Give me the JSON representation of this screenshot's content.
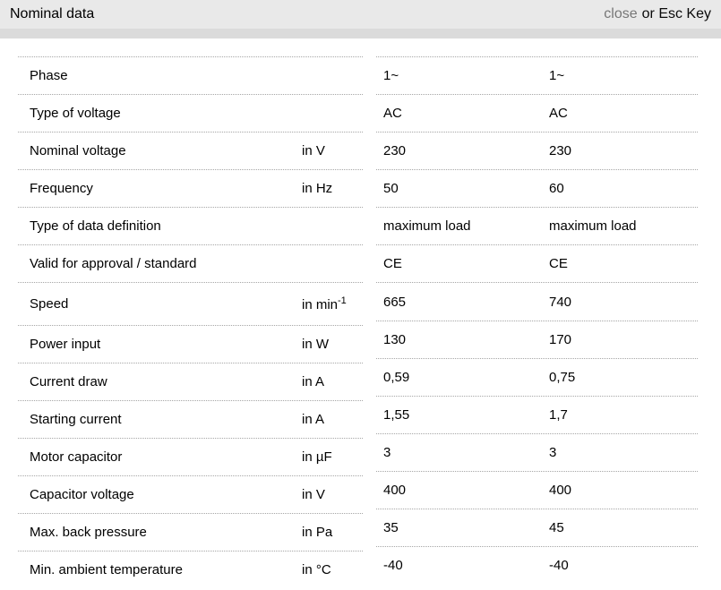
{
  "header": {
    "title": "Nominal data",
    "close_label": "close",
    "esc_hint": "or Esc Key"
  },
  "colors": {
    "header_bg": "#e9e9e9",
    "subbar_bg": "#dbdbdb",
    "close_color": "#777777",
    "divider": "#a6a6a6",
    "text": "#000000"
  },
  "table": {
    "rows": [
      {
        "label": "Phase",
        "unit": "",
        "unit_sup": "",
        "values": [
          "1~",
          "1~"
        ]
      },
      {
        "label": "Type of voltage",
        "unit": "",
        "unit_sup": "",
        "values": [
          "AC",
          "AC"
        ]
      },
      {
        "label": "Nominal voltage",
        "unit": "in V",
        "unit_sup": "",
        "values": [
          "230",
          "230"
        ]
      },
      {
        "label": "Frequency",
        "unit": "in Hz",
        "unit_sup": "",
        "values": [
          "50",
          "60"
        ]
      },
      {
        "label": "Type of data definition",
        "unit": "",
        "unit_sup": "",
        "values": [
          "maximum load",
          "maximum load"
        ]
      },
      {
        "label": "Valid for approval / standard",
        "unit": "",
        "unit_sup": "",
        "values": [
          "CE",
          "CE"
        ]
      },
      {
        "label": "Speed",
        "unit": "in min",
        "unit_sup": "-1",
        "values": [
          "665",
          "740"
        ]
      },
      {
        "label": "Power input",
        "unit": "in W",
        "unit_sup": "",
        "values": [
          "130",
          "170"
        ]
      },
      {
        "label": "Current draw",
        "unit": "in A",
        "unit_sup": "",
        "values": [
          "0,59",
          "0,75"
        ]
      },
      {
        "label": "Starting current",
        "unit": "in A",
        "unit_sup": "",
        "values": [
          "1,55",
          "1,7"
        ]
      },
      {
        "label": "Motor capacitor",
        "unit": "in µF",
        "unit_sup": "",
        "values": [
          "3",
          "3"
        ]
      },
      {
        "label": "Capacitor voltage",
        "unit": "in V",
        "unit_sup": "",
        "values": [
          "400",
          "400"
        ]
      },
      {
        "label": "Max. back pressure",
        "unit": "in Pa",
        "unit_sup": "",
        "values": [
          "35",
          "45"
        ]
      },
      {
        "label": "Min. ambient temperature",
        "unit": "in °C",
        "unit_sup": "",
        "values": [
          "-40",
          "-40"
        ]
      }
    ]
  }
}
